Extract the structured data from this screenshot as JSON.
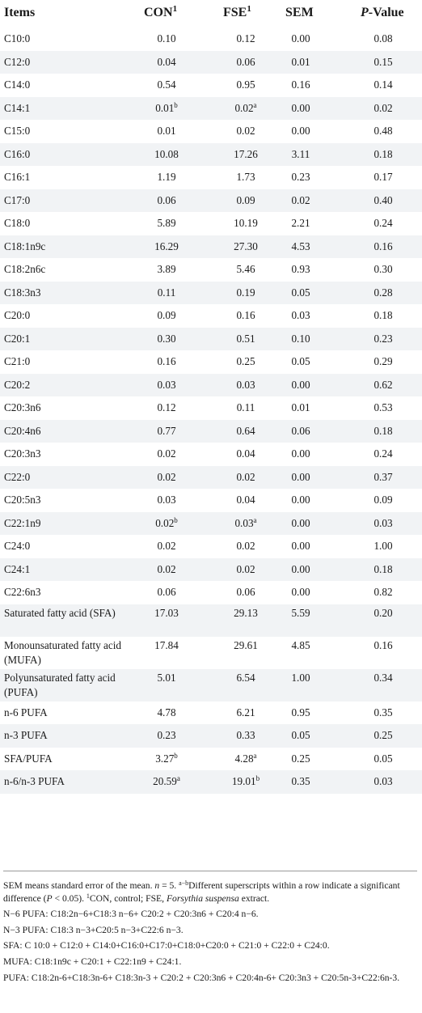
{
  "header": {
    "items": "Items",
    "con": "CON",
    "con_sup": "1",
    "fse": "FSE",
    "fse_sup": "1",
    "sem": "SEM",
    "pvalue_p": "P",
    "pvalue_rest": "-Value"
  },
  "rows": [
    {
      "item": "C10:0",
      "con": "0.10",
      "con_sup": "",
      "fse": "0.12",
      "fse_sup": "",
      "sem": "0.00",
      "p": "0.08"
    },
    {
      "item": "C12:0",
      "con": "0.04",
      "con_sup": "",
      "fse": "0.06",
      "fse_sup": "",
      "sem": "0.01",
      "p": "0.15"
    },
    {
      "item": "C14:0",
      "con": "0.54",
      "con_sup": "",
      "fse": "0.95",
      "fse_sup": "",
      "sem": "0.16",
      "p": "0.14"
    },
    {
      "item": "C14:1",
      "con": "0.01",
      "con_sup": "b",
      "fse": "0.02",
      "fse_sup": "a",
      "sem": "0.00",
      "p": "0.02"
    },
    {
      "item": "C15:0",
      "con": "0.01",
      "con_sup": "",
      "fse": "0.02",
      "fse_sup": "",
      "sem": "0.00",
      "p": "0.48"
    },
    {
      "item": "C16:0",
      "con": "10.08",
      "con_sup": "",
      "fse": "17.26",
      "fse_sup": "",
      "sem": "3.11",
      "p": "0.18"
    },
    {
      "item": "C16:1",
      "con": "1.19",
      "con_sup": "",
      "fse": "1.73",
      "fse_sup": "",
      "sem": "0.23",
      "p": "0.17"
    },
    {
      "item": "C17:0",
      "con": "0.06",
      "con_sup": "",
      "fse": "0.09",
      "fse_sup": "",
      "sem": "0.02",
      "p": "0.40"
    },
    {
      "item": "C18:0",
      "con": "5.89",
      "con_sup": "",
      "fse": "10.19",
      "fse_sup": "",
      "sem": "2.21",
      "p": "0.24"
    },
    {
      "item": "C18:1n9c",
      "con": "16.29",
      "con_sup": "",
      "fse": "27.30",
      "fse_sup": "",
      "sem": "4.53",
      "p": "0.16"
    },
    {
      "item": "C18:2n6c",
      "con": "3.89",
      "con_sup": "",
      "fse": "5.46",
      "fse_sup": "",
      "sem": "0.93",
      "p": "0.30"
    },
    {
      "item": "C18:3n3",
      "con": "0.11",
      "con_sup": "",
      "fse": "0.19",
      "fse_sup": "",
      "sem": "0.05",
      "p": "0.28"
    },
    {
      "item": "C20:0",
      "con": "0.09",
      "con_sup": "",
      "fse": "0.16",
      "fse_sup": "",
      "sem": "0.03",
      "p": "0.18"
    },
    {
      "item": "C20:1",
      "con": "0.30",
      "con_sup": "",
      "fse": "0.51",
      "fse_sup": "",
      "sem": "0.10",
      "p": "0.23"
    },
    {
      "item": "C21:0",
      "con": "0.16",
      "con_sup": "",
      "fse": "0.25",
      "fse_sup": "",
      "sem": "0.05",
      "p": "0.29"
    },
    {
      "item": "C20:2",
      "con": "0.03",
      "con_sup": "",
      "fse": "0.03",
      "fse_sup": "",
      "sem": "0.00",
      "p": "0.62"
    },
    {
      "item": "C20:3n6",
      "con": "0.12",
      "con_sup": "",
      "fse": "0.11",
      "fse_sup": "",
      "sem": "0.01",
      "p": "0.53"
    },
    {
      "item": "C20:4n6",
      "con": "0.77",
      "con_sup": "",
      "fse": "0.64",
      "fse_sup": "",
      "sem": "0.06",
      "p": "0.18"
    },
    {
      "item": "C20:3n3",
      "con": "0.02",
      "con_sup": "",
      "fse": "0.04",
      "fse_sup": "",
      "sem": "0.00",
      "p": "0.24"
    },
    {
      "item": "C22:0",
      "con": "0.02",
      "con_sup": "",
      "fse": "0.02",
      "fse_sup": "",
      "sem": "0.00",
      "p": "0.37"
    },
    {
      "item": "C20:5n3",
      "con": "0.03",
      "con_sup": "",
      "fse": "0.04",
      "fse_sup": "",
      "sem": "0.00",
      "p": "0.09"
    },
    {
      "item": "C22:1n9",
      "con": "0.02",
      "con_sup": "b",
      "fse": "0.03",
      "fse_sup": "a",
      "sem": "0.00",
      "p": "0.03"
    },
    {
      "item": "C24:0",
      "con": "0.02",
      "con_sup": "",
      "fse": "0.02",
      "fse_sup": "",
      "sem": "0.00",
      "p": "1.00"
    },
    {
      "item": "C24:1",
      "con": "0.02",
      "con_sup": "",
      "fse": "0.02",
      "fse_sup": "",
      "sem": "0.00",
      "p": "0.18"
    },
    {
      "item": "C22:6n3",
      "con": "0.06",
      "con_sup": "",
      "fse": "0.06",
      "fse_sup": "",
      "sem": "0.00",
      "p": "0.82"
    },
    {
      "item": "Saturated fatty acid (SFA)",
      "con": "17.03",
      "con_sup": "",
      "fse": "29.13",
      "fse_sup": "",
      "sem": "5.59",
      "p": "0.20",
      "tall": true
    },
    {
      "item": "Monounsaturated fatty acid (MUFA)",
      "con": "17.84",
      "con_sup": "",
      "fse": "29.61",
      "fse_sup": "",
      "sem": "4.85",
      "p": "0.16",
      "tall": true
    },
    {
      "item": "Polyunsaturated fatty acid (PUFA)",
      "con": "5.01",
      "con_sup": "",
      "fse": "6.54",
      "fse_sup": "",
      "sem": "1.00",
      "p": "0.34",
      "tall": true
    },
    {
      "item": "n-6 PUFA",
      "con": "4.78",
      "con_sup": "",
      "fse": "6.21",
      "fse_sup": "",
      "sem": "0.95",
      "p": "0.35"
    },
    {
      "item": "n-3 PUFA",
      "con": "0.23",
      "con_sup": "",
      "fse": "0.33",
      "fse_sup": "",
      "sem": "0.05",
      "p": "0.25"
    },
    {
      "item": "SFA/PUFA",
      "con": "3.27",
      "con_sup": "b",
      "fse": "4.28",
      "fse_sup": "a",
      "sem": "0.25",
      "p": "0.05"
    },
    {
      "item": "n-6/n-3 PUFA",
      "con": "20.59",
      "con_sup": "a",
      "fse": "19.01",
      "fse_sup": "b",
      "sem": "0.35",
      "p": "0.03"
    }
  ],
  "footnotes": {
    "line1_a": "SEM means standard error of the mean. ",
    "line1_n": "n",
    "line1_b": " = 5. ",
    "line1_sup1": "a−b",
    "line1_c": "Different superscripts within a row indicate a significant difference (",
    "line1_p": "P",
    "line1_d": " < 0.05). ",
    "line1_sup2": "1",
    "line1_e": "CON, control; FSE, ",
    "line1_species": "Forsythia suspensa",
    "line1_f": " extract.",
    "n6": "N−6 PUFA: C18:2n−6+C18:3 n−6+ C20:2 + C20:3n6 + C20:4 n−6.",
    "n3": "N−3 PUFA: C18:3 n−3+C20:5 n−3+C22:6 n−3.",
    "sfa": "SFA: C 10:0 + C12:0 + C14:0+C16:0+C17:0+C18:0+C20:0 + C21:0 + C22:0 + C24:0.",
    "mufa": "MUFA: C18:1n9c + C20:1 + C22:1n9 + C24:1.",
    "pufa": "PUFA: C18:2n-6+C18:3n-6+ C18:3n-3 + C20:2 + C20:3n6 + C20:4n-6+ C20:3n3 + C20:5n-3+C22:6n-3."
  }
}
